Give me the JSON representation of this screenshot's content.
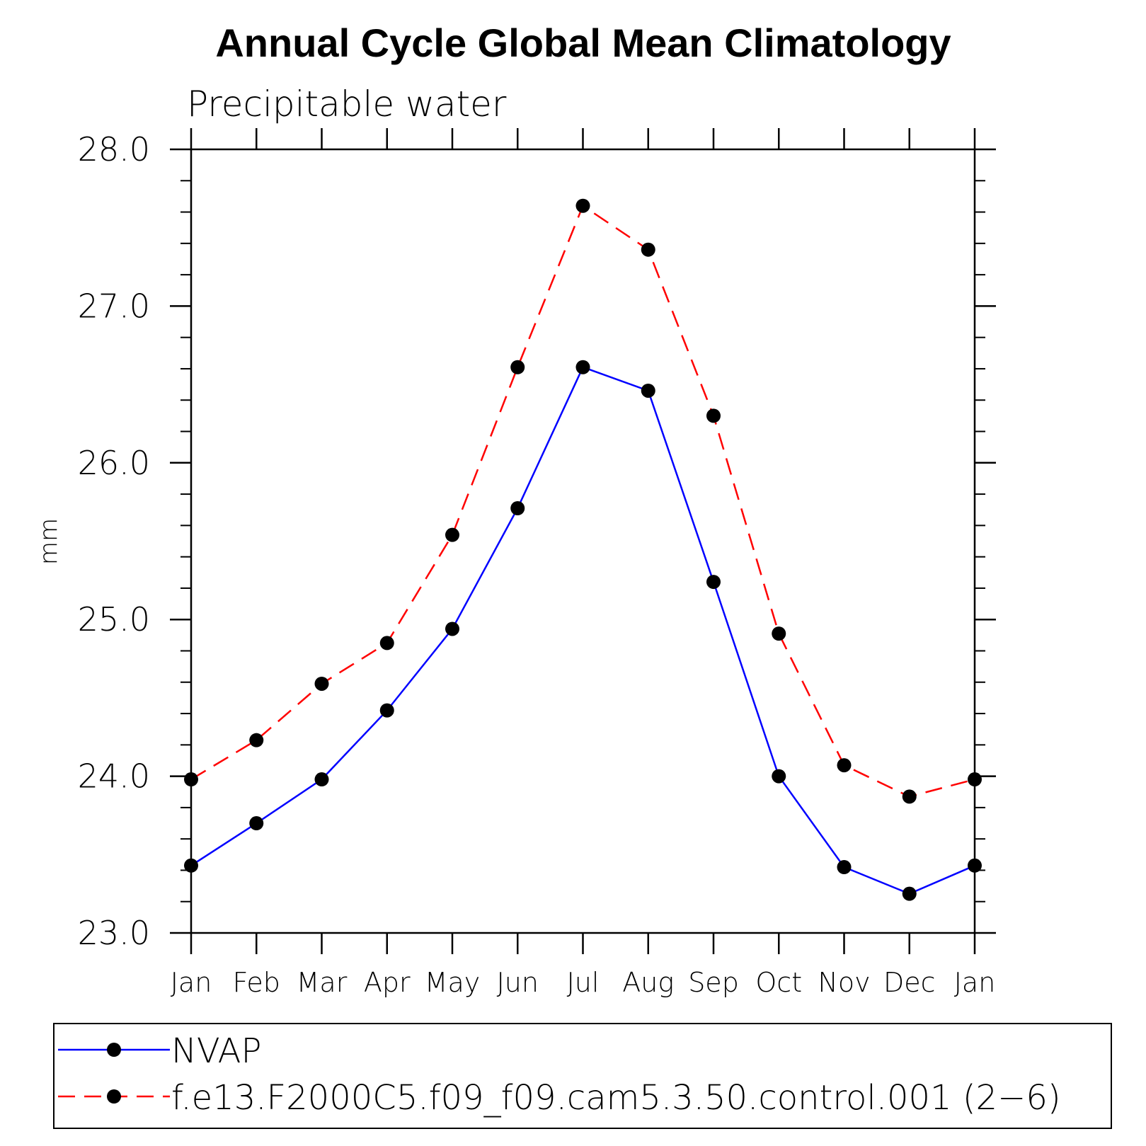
{
  "chart_data": {
    "type": "line",
    "title": "Annual Cycle Global Mean Climatology",
    "subtitle": "Precipitable water",
    "xlabel": "",
    "ylabel": "mm",
    "ylim": [
      23.0,
      28.0
    ],
    "yticks": [
      "23.0",
      "24.0",
      "25.0",
      "26.0",
      "27.0",
      "28.0"
    ],
    "yminor_step": 0.2,
    "categories": [
      "Jan",
      "Feb",
      "Mar",
      "Apr",
      "May",
      "Jun",
      "Jul",
      "Aug",
      "Sep",
      "Oct",
      "Nov",
      "Dec",
      "Jan"
    ],
    "series": [
      {
        "name": "NVAP",
        "color": "#0000ff",
        "style": "solid",
        "marker": "filled-circle",
        "values": [
          23.43,
          23.7,
          23.98,
          24.42,
          24.94,
          25.71,
          26.61,
          26.46,
          25.24,
          24.0,
          23.42,
          23.25,
          23.43
        ]
      },
      {
        "name": "f.e13.F2000C5.f09_f09.cam5.3.50.control.001 (2−6)",
        "color": "#ff0000",
        "style": "dashed",
        "marker": "filled-circle",
        "values": [
          23.98,
          24.23,
          24.59,
          24.85,
          25.54,
          26.61,
          27.64,
          27.36,
          26.3,
          24.91,
          24.07,
          23.87,
          23.98
        ]
      }
    ],
    "legend_position": "bottom"
  }
}
